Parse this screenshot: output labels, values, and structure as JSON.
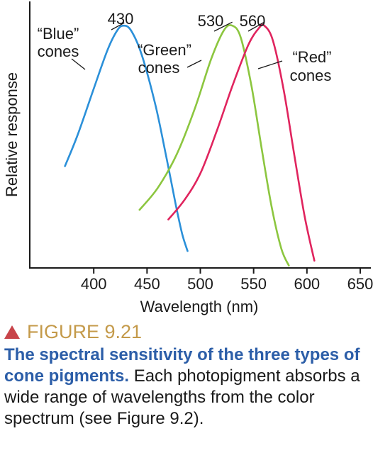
{
  "chart_data": {
    "type": "line",
    "xlabel": "Wavelength (nm)",
    "ylabel": "Relative response",
    "xlim": [
      340,
      660
    ],
    "ylim": [
      0,
      1.1
    ],
    "xticks": [
      400,
      450,
      500,
      550,
      600,
      650
    ],
    "grid": false,
    "legend": "none",
    "series": [
      {
        "name": "“Blue” cones",
        "color": "#2b90d9",
        "peak": 430,
        "points": [
          [
            373,
            0.42
          ],
          [
            385,
            0.55
          ],
          [
            400,
            0.74
          ],
          [
            413,
            0.9
          ],
          [
            422,
            0.98
          ],
          [
            428,
            1.0
          ],
          [
            435,
            0.98
          ],
          [
            445,
            0.88
          ],
          [
            458,
            0.67
          ],
          [
            468,
            0.46
          ],
          [
            477,
            0.26
          ],
          [
            483,
            0.14
          ],
          [
            488,
            0.07
          ]
        ]
      },
      {
        "name": "“Green” cones",
        "color": "#8cc63f",
        "peak": 530,
        "points": [
          [
            443,
            0.24
          ],
          [
            460,
            0.33
          ],
          [
            478,
            0.47
          ],
          [
            495,
            0.66
          ],
          [
            510,
            0.86
          ],
          [
            522,
            0.98
          ],
          [
            530,
            1.0
          ],
          [
            538,
            0.95
          ],
          [
            548,
            0.75
          ],
          [
            558,
            0.48
          ],
          [
            567,
            0.25
          ],
          [
            576,
            0.08
          ],
          [
            583,
            0.01
          ]
        ]
      },
      {
        "name": "“Red” cones",
        "color": "#e0245e",
        "peak": 560,
        "points": [
          [
            470,
            0.2
          ],
          [
            485,
            0.28
          ],
          [
            500,
            0.39
          ],
          [
            515,
            0.56
          ],
          [
            530,
            0.75
          ],
          [
            545,
            0.92
          ],
          [
            555,
            0.99
          ],
          [
            560,
            1.0
          ],
          [
            568,
            0.94
          ],
          [
            578,
            0.74
          ],
          [
            588,
            0.47
          ],
          [
            598,
            0.21
          ],
          [
            607,
            0.03
          ]
        ]
      }
    ],
    "annotations": {
      "peaks": [
        "430",
        "530",
        "560"
      ],
      "blue_label": [
        "“Blue”",
        "cones"
      ],
      "green_label": [
        "“Green”",
        "cones"
      ],
      "red_label": [
        "“Red”",
        "cones"
      ]
    }
  },
  "caption": {
    "figure_label": "FIGURE 9.21",
    "bold_text": "The spectral sensitivity of the three types of cone pigments.",
    "body_text": " Each photopigment absorbs a wide range of wavelengths from the color spectrum (see Figure 9.2)."
  },
  "colors": {
    "accent": "#c49a4a",
    "title_blue": "#2c5ea8",
    "marker": "#c8444a"
  }
}
